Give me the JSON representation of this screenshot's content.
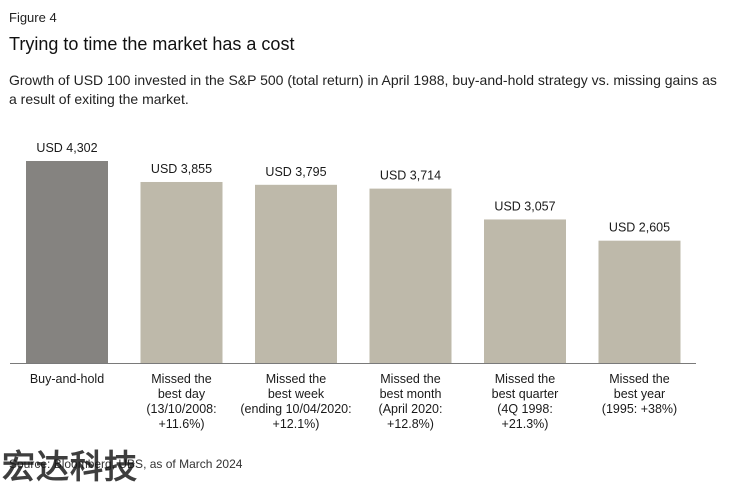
{
  "header": {
    "figure_label": "Figure 4",
    "title": "Trying to time the market has a cost",
    "subtitle": "Growth of USD 100 invested in the S&P 500 (total return) in April 1988, buy-and-hold strategy vs. missing gains as a result of exiting the market."
  },
  "footer": {
    "source": "Source: Bloomberg, UBS, as of March 2024",
    "watermark": "宏达科技"
  },
  "colors": {
    "highlight_bar": "#858380",
    "other_bar": "#beb9aa",
    "baseline": "#7a7a7a"
  },
  "chart_data": {
    "type": "bar",
    "categories": [
      [
        "Buy-and-hold"
      ],
      [
        "Missed the",
        "best day",
        "(13/10/2008:",
        "+11.6%)"
      ],
      [
        "Missed the",
        "best week",
        "(ending 10/04/2020:",
        "+12.1%)"
      ],
      [
        "Missed the",
        "best month",
        "(April 2020:",
        "+12.8%)"
      ],
      [
        "Missed the",
        "best quarter",
        "(4Q 1998:",
        "+21.3%)"
      ],
      [
        "Missed the",
        "best year",
        "(1995: +38%)"
      ]
    ],
    "values": [
      4302,
      3855,
      3795,
      3714,
      3057,
      2605
    ],
    "data_labels": [
      "USD 4,302",
      "USD 3,855",
      "USD 3,795",
      "USD 3,714",
      "USD 3,057",
      "USD 2,605"
    ],
    "highlight_index": 0,
    "ylim": [
      0,
      4302
    ],
    "grid": false
  }
}
